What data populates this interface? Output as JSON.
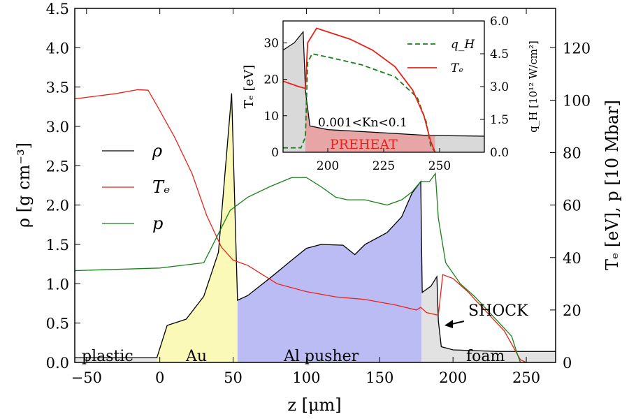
{
  "chart_data": [
    {
      "type": "line",
      "xlabel": "z [μm]",
      "ylabel_left": "ρ [g cm⁻³]",
      "ylabel_right": "Tₑ [eV], p [10 Mbar]",
      "xlim": [
        -58,
        270
      ],
      "ylim_left": [
        0,
        4.5
      ],
      "ylim_right": [
        0,
        135
      ],
      "x_ticks": [
        "−50",
        "0",
        "50",
        "100",
        "150",
        "200",
        "250"
      ],
      "y_left_ticks": [
        "0.0",
        "0.5",
        "1.0",
        "1.5",
        "2.0",
        "2.5",
        "3.0",
        "3.5",
        "4.0",
        "4.5"
      ],
      "y_right_ticks": [
        "0",
        "20",
        "40",
        "60",
        "80",
        "100",
        "120"
      ],
      "legend": {
        "placement": "center-left",
        "entries": [
          {
            "label": "ρ",
            "color": "#000000"
          },
          {
            "label": "Tₑ",
            "color": "#e8221a"
          },
          {
            "label": "p",
            "color": "#198019"
          }
        ]
      },
      "regions": [
        {
          "label": "plastic",
          "fill": "#e6e6e6"
        },
        {
          "label": "Au",
          "fill": "#fbf9b8"
        },
        {
          "label": "Al pusher",
          "fill": "#bcbcf5"
        },
        {
          "label": "foam",
          "fill": "#e2e2e2"
        }
      ],
      "annotations": [
        "SHOCK"
      ],
      "series": [
        {
          "name": "ρ",
          "axis": "left",
          "color": "#000000",
          "points": [
            [
              -58,
              0.06
            ],
            [
              -2,
              0.06
            ],
            [
              5,
              0.47
            ],
            [
              18,
              0.55
            ],
            [
              30,
              0.84
            ],
            [
              40,
              1.4
            ],
            [
              49,
              3.42
            ],
            [
              53,
              0.79
            ],
            [
              60,
              0.85
            ],
            [
              75,
              1.07
            ],
            [
              90,
              1.3
            ],
            [
              100,
              1.45
            ],
            [
              110,
              1.5
            ],
            [
              125,
              1.49
            ],
            [
              133,
              1.37
            ],
            [
              140,
              1.5
            ],
            [
              155,
              1.65
            ],
            [
              165,
              1.85
            ],
            [
              172,
              2.15
            ],
            [
              178,
              2.3
            ],
            [
              179,
              0.89
            ],
            [
              185,
              0.97
            ],
            [
              189,
              1.09
            ],
            [
              190,
              0.53
            ],
            [
              192,
              0.2
            ],
            [
              200,
              0.16
            ],
            [
              230,
              0.14
            ],
            [
              270,
              0.14
            ]
          ]
        },
        {
          "name": "Tₑ",
          "axis": "right",
          "color": "#e8221a",
          "points": [
            [
              -58,
              100.5
            ],
            [
              -30,
              102.5
            ],
            [
              -15,
              104
            ],
            [
              -8,
              103.8
            ],
            [
              -2,
              98
            ],
            [
              10,
              86
            ],
            [
              22,
              72
            ],
            [
              32,
              56
            ],
            [
              42,
              44
            ],
            [
              50,
              39
            ],
            [
              60,
              37
            ],
            [
              80,
              30
            ],
            [
              100,
              27
            ],
            [
              120,
              25
            ],
            [
              140,
              24
            ],
            [
              160,
              22
            ],
            [
              175,
              20
            ],
            [
              178,
              21
            ],
            [
              182,
              19
            ],
            [
              190,
              18
            ],
            [
              193,
              33.5
            ],
            [
              200,
              32
            ],
            [
              210,
              27
            ],
            [
              225,
              18
            ],
            [
              235,
              12
            ],
            [
              242,
              5
            ],
            [
              246,
              1
            ],
            [
              250,
              0
            ]
          ]
        },
        {
          "name": "p",
          "axis": "right",
          "color": "#198019",
          "points": [
            [
              -58,
              35
            ],
            [
              0,
              36
            ],
            [
              30,
              38
            ],
            [
              48,
              58
            ],
            [
              60,
              63
            ],
            [
              75,
              67
            ],
            [
              90,
              70.5
            ],
            [
              100,
              70.5
            ],
            [
              110,
              67
            ],
            [
              120,
              63
            ],
            [
              128,
              62
            ],
            [
              140,
              62
            ],
            [
              155,
              60
            ],
            [
              165,
              62
            ],
            [
              172,
              65
            ],
            [
              178,
              69
            ],
            [
              184,
              69
            ],
            [
              188,
              72
            ],
            [
              190,
              55
            ],
            [
              195,
              38
            ],
            [
              205,
              30
            ],
            [
              215,
              25
            ],
            [
              230,
              16
            ],
            [
              240,
              10
            ],
            [
              244,
              3
            ],
            [
              246,
              0
            ]
          ]
        }
      ]
    },
    {
      "type": "line",
      "ylabel_left": "Tₑ [eV]",
      "ylabel_right": "q_H [10¹² W/cm²]",
      "xlim": [
        180,
        270
      ],
      "ylim_left": [
        0,
        36
      ],
      "ylim_right": [
        0,
        6.0
      ],
      "x_ticks": [
        "200",
        "225",
        "250"
      ],
      "y_left_ticks": [
        "0",
        "10",
        "20",
        "30"
      ],
      "y_right_ticks": [
        "0.0",
        "1.5",
        "3.0",
        "4.5",
        "6.0"
      ],
      "legend": {
        "placement": "top-right",
        "entries": [
          {
            "label": "q_H",
            "color": "#198019",
            "style": "dashed"
          },
          {
            "label": "Tₑ",
            "color": "#e8221a"
          }
        ]
      },
      "annotations": [
        "0.001<Kn<0.1",
        "PREHEAT"
      ],
      "series": [
        {
          "name": "ρ",
          "axis": "left",
          "color": "#000000",
          "points": [
            [
              180,
              28
            ],
            [
              185,
              30
            ],
            [
              189,
              33
            ],
            [
              190,
              17
            ],
            [
              192,
              7.2
            ],
            [
              200,
              6.2
            ],
            [
              220,
              5.5
            ],
            [
              245,
              4.6
            ],
            [
              270,
              4.4
            ]
          ]
        },
        {
          "name": "Tₑ",
          "axis": "left",
          "color": "#e8221a",
          "points": [
            [
              180,
              19.5
            ],
            [
              187,
              18
            ],
            [
              190,
              17.5
            ],
            [
              191,
              30
            ],
            [
              195,
              34
            ],
            [
              200,
              33
            ],
            [
              210,
              31
            ],
            [
              220,
              28
            ],
            [
              230,
              23.5
            ],
            [
              238,
              17
            ],
            [
              243,
              10
            ],
            [
              246,
              3
            ],
            [
              248,
              0
            ]
          ]
        },
        {
          "name": "q_H",
          "axis": "right",
          "color": "#198019",
          "style": "dashed",
          "points": [
            [
              180,
              0.2
            ],
            [
              188,
              0.2
            ],
            [
              190,
              0.7
            ],
            [
              191,
              4.1
            ],
            [
              193,
              4.5
            ],
            [
              200,
              4.35
            ],
            [
              215,
              4.0
            ],
            [
              230,
              3.45
            ],
            [
              240,
              2.5
            ],
            [
              244,
              1.4
            ],
            [
              246,
              0.3
            ],
            [
              248,
              0
            ]
          ]
        }
      ]
    }
  ]
}
